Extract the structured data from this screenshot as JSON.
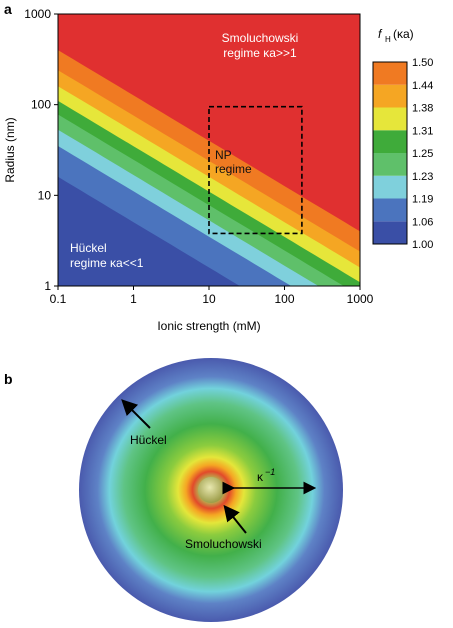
{
  "panels": {
    "a": {
      "letter": "a"
    },
    "b": {
      "letter": "b"
    }
  },
  "chart_data": {
    "type": "heatmap",
    "title": "",
    "xlabel": "Ionic strength (mM)",
    "ylabel": "Radius (nm)",
    "xscale": "log",
    "yscale": "log",
    "xlim": [
      0.1,
      1000
    ],
    "ylim": [
      1,
      1000
    ],
    "x_ticks": [
      "0.1",
      "1",
      "10",
      "100",
      "1000"
    ],
    "y_ticks": [
      "1",
      "10",
      "100",
      "1000"
    ],
    "grid": false,
    "colorbar": {
      "title_main": "f",
      "title_sub": "H",
      "title_arg": "(κa)",
      "levels": [
        "1.00",
        "1.06",
        "1.19",
        "1.23",
        "1.25",
        "1.31",
        "1.38",
        "1.44",
        "1.50"
      ],
      "colors": [
        "#3a4fa6",
        "#4b74be",
        "#7fd0dc",
        "#5fc06a",
        "#3fab3a",
        "#e6e63a",
        "#f5a623",
        "#f07a22",
        "#e03030"
      ]
    },
    "contour_boundaries_radius_at_0_1mM": [
      16,
      35,
      53,
      78,
      110,
      160,
      240,
      400
    ],
    "contour_slope_per_decade": -0.5,
    "region_labels": {
      "smoluchowski_line1": "Smoluchowski",
      "smoluchowski_line2": "regime κa>>1",
      "np_line1": "NP",
      "np_line2": "regime",
      "huckel_line1": "Hückel",
      "huckel_line2": "regime κa<<1"
    },
    "np_box": {
      "ionic_strength_mM": [
        10,
        170
      ],
      "radius_nm": [
        3.8,
        95
      ]
    }
  },
  "diagram": {
    "labels": {
      "huckel": "Hückel",
      "smoluchowski": "Smoluchowski",
      "debye_main": "κ",
      "debye_sup": "−1"
    },
    "colors": {
      "outer": "#4a5aad",
      "mid": "#4fbfd0",
      "green": "#42b04a",
      "core": "#c8c86a"
    }
  }
}
